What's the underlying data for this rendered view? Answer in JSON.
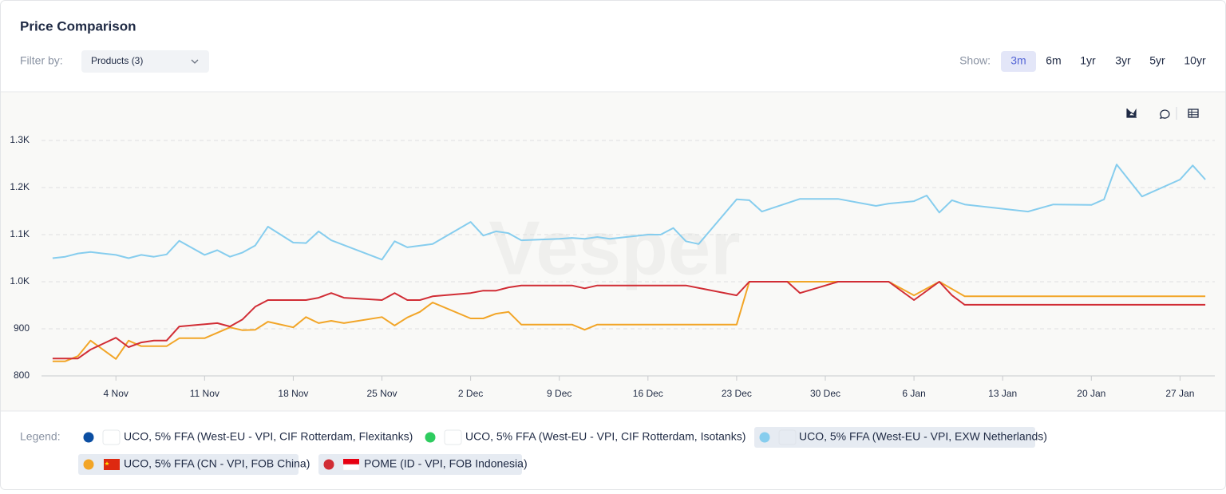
{
  "header": {
    "title": "Price Comparison",
    "filter_label": "Filter by:",
    "filter_value": "Products (3)",
    "show_label": "Show:",
    "ranges": [
      "3m",
      "6m",
      "1yr",
      "3yr",
      "5yr",
      "10yr"
    ],
    "active_range": 0
  },
  "legend_label": "Legend:",
  "watermark": "Vesper",
  "chart_data": {
    "type": "line",
    "xlim": [
      "29 Oct",
      "30 Jan"
    ],
    "xticks": [
      "4 Nov",
      "11 Nov",
      "18 Nov",
      "25 Nov",
      "2 Dec",
      "9 Dec",
      "16 Dec",
      "23 Dec",
      "30 Dec",
      "6 Jan",
      "13 Jan",
      "20 Jan",
      "27 Jan"
    ],
    "ylim": [
      800,
      1300
    ],
    "yticks": [
      800,
      900,
      {
        "value": 1000,
        "label": "1.0K"
      },
      {
        "value": 1100,
        "label": "1.1K"
      },
      {
        "value": 1200,
        "label": "1.2K"
      },
      {
        "value": 1300,
        "label": "1.3K"
      }
    ],
    "grid": true,
    "series": [
      {
        "name": "UCO, 5% FFA (West-EU - VPI, CIF Rotterdam, Flexitanks)",
        "color": "#0b4ea2",
        "x": [],
        "values": []
      },
      {
        "name": "UCO, 5% FFA (West-EU - VPI, CIF Rotterdam, Isotanks)",
        "color": "#2ecc5f",
        "x": [],
        "values": []
      },
      {
        "name": "UCO, 5% FFA (West-EU - VPI, EXW Netherlands)",
        "color": "#86cdee",
        "x": [
          "30 Oct",
          "31 Oct",
          "1 Nov",
          "2 Nov",
          "4 Nov",
          "5 Nov",
          "6 Nov",
          "7 Nov",
          "8 Nov",
          "9 Nov",
          "11 Nov",
          "12 Nov",
          "13 Nov",
          "14 Nov",
          "15 Nov",
          "16 Nov",
          "18 Nov",
          "19 Nov",
          "20 Nov",
          "21 Nov",
          "25 Nov",
          "26 Nov",
          "27 Nov",
          "29 Nov",
          "2 Dec",
          "3 Dec",
          "4 Dec",
          "5 Dec",
          "6 Dec",
          "9 Dec",
          "10 Dec",
          "11 Dec",
          "12 Dec",
          "13 Dec",
          "16 Dec",
          "17 Dec",
          "18 Dec",
          "19 Dec",
          "20 Dec",
          "23 Dec",
          "24 Dec",
          "25 Dec",
          "28 Dec",
          "31 Dec",
          "3 Jan",
          "4 Jan",
          "6 Jan",
          "7 Jan",
          "8 Jan",
          "9 Jan",
          "10 Jan",
          "15 Jan",
          "17 Jan",
          "20 Jan",
          "21 Jan",
          "22 Jan",
          "24 Jan",
          "27 Jan",
          "28 Jan",
          "29 Jan"
        ],
        "values": [
          1050,
          1053,
          1060,
          1063,
          1057,
          1050,
          1057,
          1053,
          1058,
          1087,
          1057,
          1067,
          1053,
          1062,
          1077,
          1117,
          1083,
          1082,
          1107,
          1088,
          1047,
          1086,
          1073,
          1080,
          1127,
          1098,
          1107,
          1103,
          1088,
          1091,
          1093,
          1091,
          1095,
          1091,
          1100,
          1100,
          1114,
          1086,
          1080,
          1175,
          1173,
          1149,
          1176,
          1176,
          1161,
          1166,
          1171,
          1183,
          1147,
          1173,
          1164,
          1149,
          1164,
          1163,
          1175,
          1249,
          1181,
          1217,
          1247,
          1217
        ]
      },
      {
        "name": "UCO, 5% FFA (CN - VPI, FOB China)",
        "color": "#f2a527",
        "x": [
          "30 Oct",
          "31 Oct",
          "1 Nov",
          "2 Nov",
          "4 Nov",
          "5 Nov",
          "6 Nov",
          "7 Nov",
          "8 Nov",
          "9 Nov",
          "11 Nov",
          "13 Nov",
          "14 Nov",
          "15 Nov",
          "16 Nov",
          "18 Nov",
          "19 Nov",
          "20 Nov",
          "21 Nov",
          "22 Nov",
          "25 Nov",
          "26 Nov",
          "27 Nov",
          "28 Nov",
          "29 Nov",
          "2 Dec",
          "3 Dec",
          "4 Dec",
          "5 Dec",
          "6 Dec",
          "10 Dec",
          "11 Dec",
          "12 Dec",
          "13 Dec",
          "23 Dec",
          "24 Dec",
          "31 Dec",
          "4 Jan",
          "6 Jan",
          "8 Jan",
          "10 Jan",
          "29 Jan"
        ],
        "values": [
          831,
          831,
          842,
          875,
          836,
          875,
          863,
          863,
          863,
          880,
          880,
          903,
          897,
          898,
          915,
          903,
          925,
          912,
          917,
          912,
          925,
          907,
          924,
          936,
          956,
          922,
          922,
          932,
          936,
          909,
          909,
          898,
          909,
          909,
          909,
          1000,
          1000,
          1000,
          971,
          1000,
          969,
          969
        ]
      },
      {
        "name": "POME (ID - VPI, FOB Indonesia)",
        "color": "#d12d35",
        "x": [
          "30 Oct",
          "1 Nov",
          "2 Nov",
          "4 Nov",
          "5 Nov",
          "6 Nov",
          "7 Nov",
          "8 Nov",
          "9 Nov",
          "12 Nov",
          "13 Nov",
          "14 Nov",
          "15 Nov",
          "16 Nov",
          "19 Nov",
          "20 Nov",
          "21 Nov",
          "22 Nov",
          "25 Nov",
          "26 Nov",
          "27 Nov",
          "28 Nov",
          "29 Nov",
          "2 Dec",
          "3 Dec",
          "4 Dec",
          "5 Dec",
          "6 Dec",
          "10 Dec",
          "11 Dec",
          "12 Dec",
          "13 Dec",
          "19 Dec",
          "23 Dec",
          "24 Dec",
          "27 Dec",
          "28 Dec",
          "31 Dec",
          "4 Jan",
          "6 Jan",
          "8 Jan",
          "9 Jan",
          "10 Jan",
          "29 Jan"
        ],
        "values": [
          837,
          837,
          856,
          881,
          861,
          871,
          875,
          875,
          905,
          912,
          905,
          920,
          947,
          961,
          961,
          966,
          976,
          966,
          961,
          976,
          961,
          961,
          969,
          976,
          981,
          981,
          988,
          992,
          992,
          986,
          992,
          992,
          992,
          971,
          1000,
          1000,
          976,
          1000,
          1000,
          961,
          1000,
          971,
          951,
          951
        ]
      }
    ]
  }
}
